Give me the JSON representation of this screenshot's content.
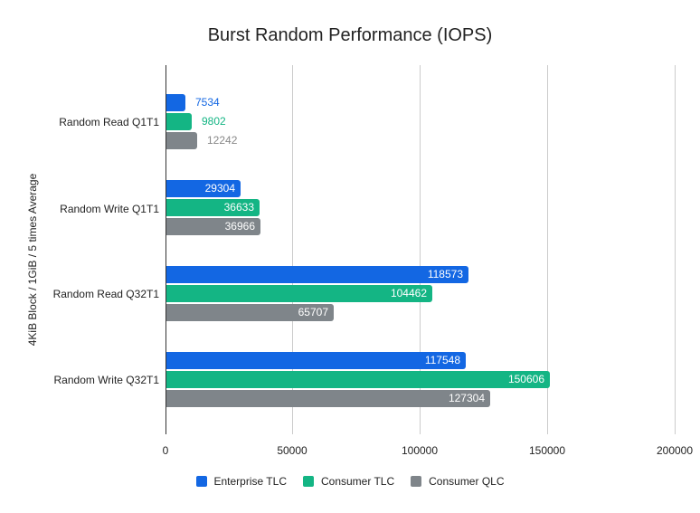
{
  "chart_data": {
    "type": "bar",
    "orientation": "horizontal",
    "title": "Burst Random Performance (IOPS)",
    "xlabel": "",
    "ylabel": "4KiB Block / 1GiB / 5 times Average",
    "xlim": [
      0,
      200000
    ],
    "xticks": [
      "0",
      "50000",
      "100000",
      "150000",
      "200000"
    ],
    "grid": true,
    "legend_position": "bottom",
    "categories": [
      "Random Read Q1T1",
      "Random Write Q1T1",
      "Random Read Q32T1",
      "Random Write Q32T1"
    ],
    "series": [
      {
        "name": "Enterprise TLC",
        "color": "#1367e3",
        "values": [
          7534,
          29304,
          118573,
          117548
        ]
      },
      {
        "name": "Consumer TLC",
        "color": "#14b584",
        "values": [
          9802,
          36633,
          104462,
          150606
        ]
      },
      {
        "name": "Consumer QLC",
        "color": "#7f858a",
        "values": [
          12242,
          36966,
          65707,
          127304
        ]
      }
    ]
  }
}
